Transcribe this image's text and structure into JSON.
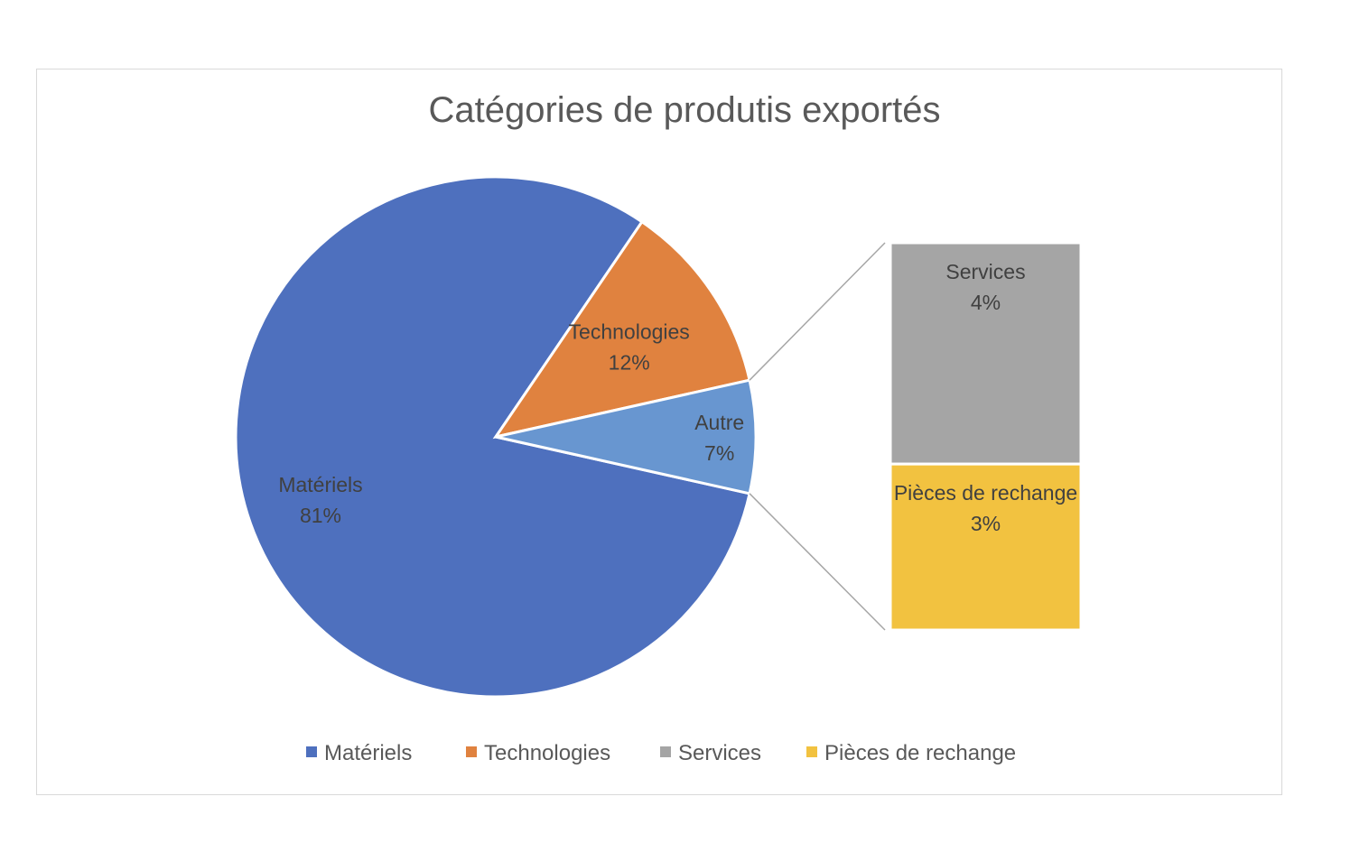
{
  "chart_data": {
    "type": "pie",
    "subtype": "pie-of-bar",
    "title": "Catégories de produtis exportés",
    "slices": [
      {
        "label": "Matériels",
        "value": 81,
        "pct_label": "81%",
        "color": "#4e70be"
      },
      {
        "label": "Technologies",
        "value": 12,
        "pct_label": "12%",
        "color": "#e0823f"
      },
      {
        "label": "Autre",
        "value": 7,
        "pct_label": "7%",
        "color": "#6896d0"
      }
    ],
    "secondary_bar": {
      "parent": "Autre",
      "segments": [
        {
          "label": "Services",
          "value": 4,
          "pct_label": "4%",
          "color": "#a5a5a5"
        },
        {
          "label": "Pièces de rechange",
          "value": 3,
          "pct_label": "3%",
          "color": "#f2c240"
        }
      ]
    },
    "legend": {
      "placement": "bottom",
      "entries": [
        {
          "label": "Matériels",
          "color": "#4e70be"
        },
        {
          "label": "Technologies",
          "color": "#e0823f"
        },
        {
          "label": "Services",
          "color": "#a5a5a5"
        },
        {
          "label": "Pièces de rechange",
          "color": "#f2c240"
        }
      ]
    }
  }
}
